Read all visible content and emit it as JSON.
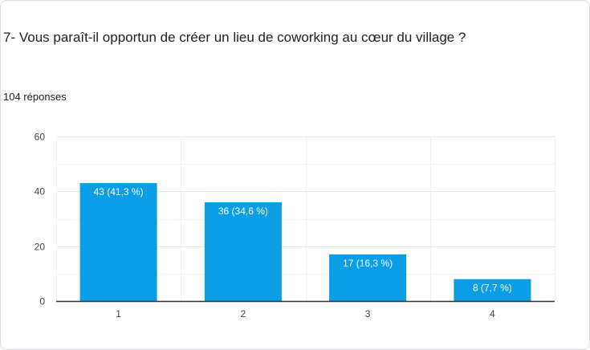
{
  "question": {
    "title": "7- Vous paraît-il opportun de créer un lieu de coworking au cœur du village ?",
    "responses": "104 réponses"
  },
  "colors": {
    "bar": "#0b9de5",
    "grid": "#e6e6e6",
    "axis": "#333333"
  },
  "chart_data": {
    "type": "bar",
    "categories": [
      "1",
      "2",
      "3",
      "4"
    ],
    "values": [
      43,
      36,
      17,
      8
    ],
    "data_labels": [
      "43 (41,3 %)",
      "36 (34,6 %)",
      "17 (16,3 %)",
      "8 (7,7 %)"
    ],
    "ylim": [
      0,
      60
    ],
    "yticks": [
      0,
      20,
      40,
      60
    ],
    "grid": true,
    "legend": "none",
    "title": "",
    "xlabel": "",
    "ylabel": ""
  }
}
